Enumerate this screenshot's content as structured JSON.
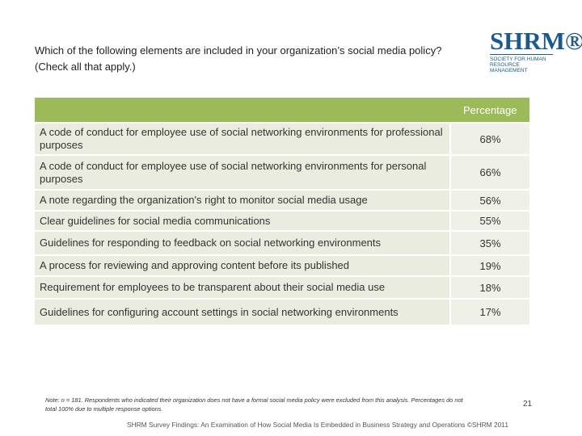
{
  "question": "Which of the following elements are included in your organization’s social media policy? (Check all that apply.)",
  "logo": {
    "mark": "SHRM®",
    "tagline": "Society for Human Resource Management"
  },
  "table": {
    "header": "Percentage",
    "rows": [
      {
        "label": "A code of conduct for employee use of social networking environments for professional purposes",
        "value": "68%"
      },
      {
        "label": "A code of conduct for employee use of social networking environments for personal purposes",
        "value": "66%"
      },
      {
        "label": "A note regarding the organization's right to monitor social media usage",
        "value": "56%"
      },
      {
        "label": "Clear guidelines for social media communications",
        "value": "55%"
      },
      {
        "label": "Guidelines for responding to feedback on social networking environments",
        "value": "35%"
      },
      {
        "label": "A process for reviewing and approving content before its published",
        "value": "19%"
      },
      {
        "label": "Requirement for employees to be transparent about their social media use",
        "value": "18%"
      },
      {
        "label": "Guidelines for configuring account settings in social networking environments",
        "value": "17%"
      }
    ]
  },
  "note": "Note: n = 181. Respondents who indicated their organization does not have a formal social media policy were excluded from this analysis. Percentages do not total 100% due to multiple response options.",
  "page_number": "21",
  "footer": "SHRM Survey Findings: An Examination of How Social Media Is Embedded in Business Strategy and Operations ©SHRM 2011",
  "colors": {
    "header_green": "#9bbb59",
    "row_bg": "#e9ecdf",
    "brand_blue": "#1c5a8e"
  }
}
